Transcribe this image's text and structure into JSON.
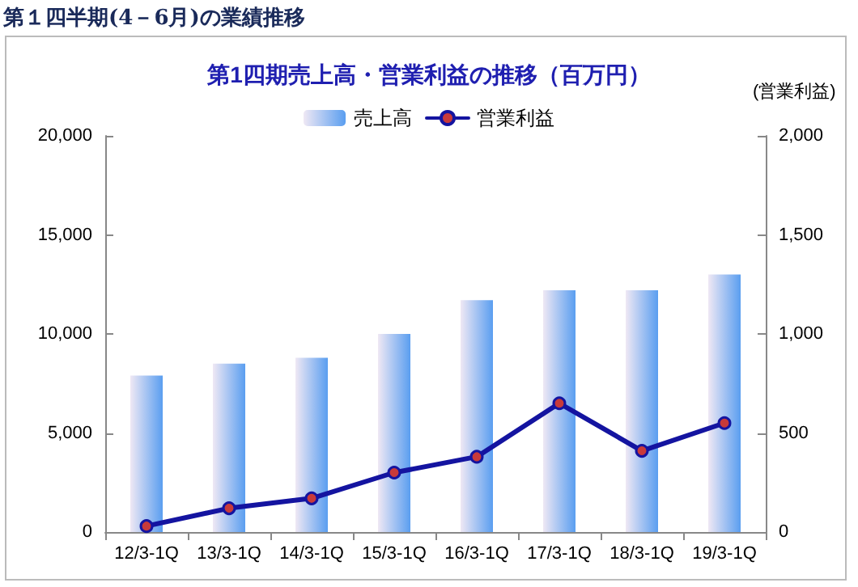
{
  "chart_data": {
    "type": "bar",
    "title": "第１四半期(4－6月)の業績推移",
    "subtitle": "第1四期売上高・営業利益の推移（百万円）",
    "y2label": "(営業利益)",
    "categories": [
      "12/3-1Q",
      "13/3-1Q",
      "14/3-1Q",
      "15/3-1Q",
      "16/3-1Q",
      "17/3-1Q",
      "18/3-1Q",
      "19/3-1Q"
    ],
    "series": [
      {
        "name": "売上高",
        "color": "#5a9ef0",
        "values": [
          7900,
          8500,
          8800,
          10000,
          11700,
          12200,
          12200,
          13000
        ]
      },
      {
        "name": "営業利益",
        "type": "line",
        "axis": "y2",
        "color": "#1414a0",
        "values": [
          30,
          120,
          170,
          300,
          380,
          650,
          410,
          550
        ]
      }
    ],
    "ylim": [
      0,
      20000
    ],
    "yticks": [
      0,
      {
        "value": 5000,
        "label": "5,000"
      },
      {
        "value": 10000,
        "label": "10,000"
      },
      {
        "value": 15000,
        "label": "15,000"
      },
      {
        "value": 20000,
        "label": "20,000"
      }
    ],
    "y2lim": [
      0,
      2000
    ],
    "y2ticks": [
      0,
      500,
      {
        "value": 1000,
        "label": "1,000"
      },
      {
        "value": 1500,
        "label": "1,500"
      },
      {
        "value": 2000,
        "label": "2,000"
      }
    ],
    "grid": false,
    "legend": "top",
    "marker": "circle",
    "line_style": "solid"
  }
}
